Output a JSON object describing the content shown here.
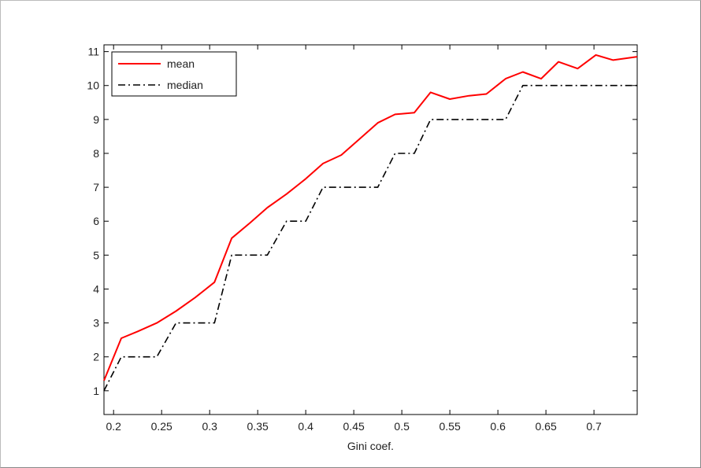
{
  "chart_data": {
    "type": "line",
    "title": "",
    "xlabel": "Gini coef.",
    "ylabel": "",
    "xlim": [
      0.19,
      0.745
    ],
    "ylim": [
      0.3,
      11.2
    ],
    "xticks": [
      0.2,
      0.25,
      0.3,
      0.35,
      0.4,
      0.45,
      0.5,
      0.55,
      0.6,
      0.65,
      0.7
    ],
    "xtick_labels": [
      "0.2",
      "0.25",
      "0.3",
      "0.35",
      "0.4",
      "0.45",
      "0.5",
      "0.55",
      "0.6",
      "0.65",
      "0.7"
    ],
    "yticks": [
      1,
      2,
      3,
      4,
      5,
      6,
      7,
      8,
      9,
      10,
      11
    ],
    "ytick_labels": [
      "1",
      "2",
      "3",
      "4",
      "5",
      "6",
      "7",
      "8",
      "9",
      "10",
      "11"
    ],
    "grid": false,
    "legend_position": "top-left",
    "series": [
      {
        "name": "mean",
        "color": "#ff0000",
        "style": "solid",
        "points": [
          [
            0.19,
            1.3
          ],
          [
            0.208,
            2.55
          ],
          [
            0.225,
            2.75
          ],
          [
            0.245,
            3.0
          ],
          [
            0.265,
            3.35
          ],
          [
            0.285,
            3.75
          ],
          [
            0.305,
            4.2
          ],
          [
            0.323,
            5.5
          ],
          [
            0.342,
            5.95
          ],
          [
            0.36,
            6.4
          ],
          [
            0.38,
            6.8
          ],
          [
            0.4,
            7.25
          ],
          [
            0.418,
            7.7
          ],
          [
            0.437,
            7.95
          ],
          [
            0.455,
            8.4
          ],
          [
            0.475,
            8.9
          ],
          [
            0.493,
            9.15
          ],
          [
            0.513,
            9.2
          ],
          [
            0.53,
            9.8
          ],
          [
            0.55,
            9.6
          ],
          [
            0.57,
            9.7
          ],
          [
            0.588,
            9.75
          ],
          [
            0.608,
            10.2
          ],
          [
            0.626,
            10.4
          ],
          [
            0.645,
            10.2
          ],
          [
            0.663,
            10.7
          ],
          [
            0.683,
            10.5
          ],
          [
            0.702,
            10.9
          ],
          [
            0.72,
            10.75
          ],
          [
            0.745,
            10.85
          ]
        ]
      },
      {
        "name": "median",
        "color": "#000000",
        "style": "dashdot",
        "points": [
          [
            0.19,
            1.0
          ],
          [
            0.208,
            2.0
          ],
          [
            0.245,
            2.0
          ],
          [
            0.265,
            3.0
          ],
          [
            0.305,
            3.0
          ],
          [
            0.323,
            5.0
          ],
          [
            0.36,
            5.0
          ],
          [
            0.38,
            6.0
          ],
          [
            0.4,
            6.0
          ],
          [
            0.418,
            7.0
          ],
          [
            0.475,
            7.0
          ],
          [
            0.493,
            8.0
          ],
          [
            0.513,
            8.0
          ],
          [
            0.53,
            9.0
          ],
          [
            0.608,
            9.0
          ],
          [
            0.626,
            10.0
          ],
          [
            0.745,
            10.0
          ]
        ]
      }
    ]
  }
}
